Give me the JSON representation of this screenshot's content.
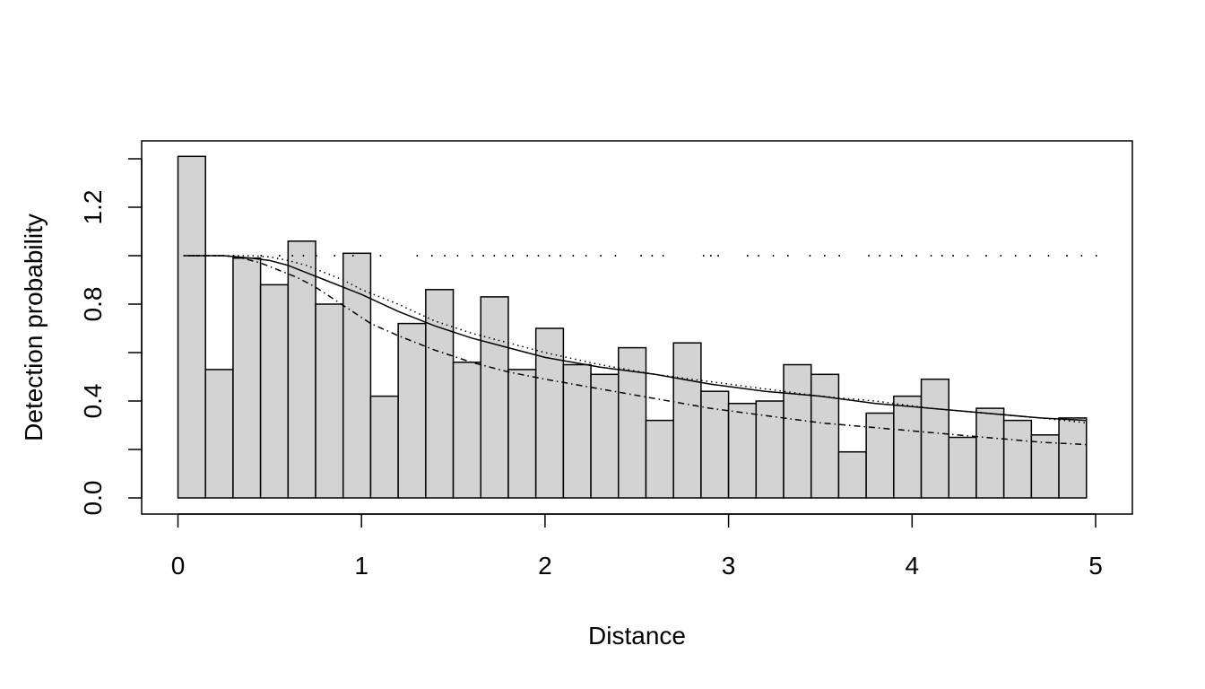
{
  "chart_data": {
    "type": "bar",
    "xlabel": "Distance",
    "ylabel": "Detection probability",
    "xlim": [
      0,
      5
    ],
    "ylim": [
      0,
      1.4
    ],
    "x_ticks": [
      0,
      1,
      2,
      3,
      4,
      5
    ],
    "y_ticks": [
      0.0,
      0.4,
      0.8,
      1.2
    ],
    "x_tick_labels": [
      "0",
      "1",
      "2",
      "3",
      "4",
      "5"
    ],
    "y_tick_labels": [
      "0.0",
      "0.4",
      "0.8",
      "1.2"
    ],
    "bin_width": 0.15,
    "bins_start": [
      0.0,
      0.15,
      0.3,
      0.45,
      0.6,
      0.75,
      0.9,
      1.05,
      1.2,
      1.35,
      1.5,
      1.65,
      1.8,
      1.95,
      2.1,
      2.25,
      2.4,
      2.55,
      2.7,
      2.85,
      3.0,
      3.15,
      3.3,
      3.45,
      3.6,
      3.75,
      3.9,
      4.05,
      4.2,
      4.35,
      4.5,
      4.65,
      4.8
    ],
    "values": [
      1.41,
      0.53,
      0.99,
      0.88,
      1.06,
      0.8,
      1.01,
      0.42,
      0.72,
      0.86,
      0.56,
      0.83,
      0.53,
      0.7,
      0.55,
      0.51,
      0.62,
      0.32,
      0.64,
      0.44,
      0.39,
      0.4,
      0.55,
      0.51,
      0.19,
      0.35,
      0.42,
      0.49,
      0.25,
      0.37,
      0.32,
      0.26,
      0.33
    ],
    "bar_fill": "#d3d3d3",
    "series": [
      {
        "line_style": "solid",
        "x": [
          0.03,
          0.25,
          0.4,
          0.5,
          0.6,
          0.7,
          0.8,
          0.9,
          1.0,
          1.2,
          1.4,
          1.6,
          1.8,
          2.0,
          2.3,
          2.6,
          2.9,
          3.2,
          3.5,
          3.8,
          4.1,
          4.4,
          4.7,
          4.95
        ],
        "y": [
          1.0,
          1.0,
          0.99,
          0.98,
          0.96,
          0.93,
          0.9,
          0.87,
          0.84,
          0.77,
          0.71,
          0.66,
          0.62,
          0.58,
          0.54,
          0.51,
          0.47,
          0.44,
          0.42,
          0.39,
          0.37,
          0.35,
          0.33,
          0.32
        ]
      },
      {
        "line_style": "dotted",
        "x": [
          0.03,
          0.25,
          0.4,
          0.5,
          0.6,
          0.7,
          0.8,
          0.9,
          1.0,
          1.2,
          1.4,
          1.6,
          1.8,
          2.0,
          2.3,
          2.6,
          2.9,
          3.2,
          3.5,
          3.8,
          4.1,
          4.4,
          4.7,
          4.95
        ],
        "y": [
          1.0,
          1.0,
          1.0,
          0.995,
          0.98,
          0.96,
          0.93,
          0.9,
          0.86,
          0.8,
          0.73,
          0.68,
          0.64,
          0.6,
          0.55,
          0.51,
          0.48,
          0.45,
          0.42,
          0.4,
          0.37,
          0.35,
          0.33,
          0.31
        ]
      },
      {
        "line_style": "dashdot",
        "x": [
          0.03,
          0.25,
          0.35,
          0.45,
          0.55,
          0.65,
          0.75,
          0.85,
          0.95,
          1.05,
          1.2,
          1.4,
          1.6,
          1.8,
          2.0,
          2.3,
          2.6,
          2.9,
          3.2,
          3.5,
          3.8,
          4.1,
          4.4,
          4.7,
          4.95
        ],
        "y": [
          1.0,
          1.0,
          0.99,
          0.97,
          0.94,
          0.91,
          0.87,
          0.82,
          0.77,
          0.72,
          0.67,
          0.61,
          0.56,
          0.52,
          0.49,
          0.45,
          0.41,
          0.37,
          0.34,
          0.31,
          0.29,
          0.27,
          0.25,
          0.23,
          0.22
        ]
      }
    ],
    "rug_y": 1.0,
    "rug_x": [
      0.1,
      0.2,
      0.3,
      0.45,
      0.55,
      0.62,
      0.68,
      0.75,
      0.85,
      0.95,
      1.1,
      1.3,
      1.38,
      1.45,
      1.52,
      1.6,
      1.66,
      1.72,
      1.78,
      1.82,
      1.9,
      1.96,
      2.02,
      2.08,
      2.15,
      2.22,
      2.3,
      2.38,
      2.52,
      2.58,
      2.64,
      2.86,
      2.9,
      2.94,
      3.1,
      3.16,
      3.24,
      3.32,
      3.44,
      3.52,
      3.6,
      3.76,
      3.82,
      3.88,
      3.94,
      4.02,
      4.1,
      4.16,
      4.22,
      4.3,
      4.4,
      4.48,
      4.56,
      4.64,
      4.74,
      4.84,
      4.92,
      5.0
    ],
    "grid": false,
    "legend": "none"
  }
}
